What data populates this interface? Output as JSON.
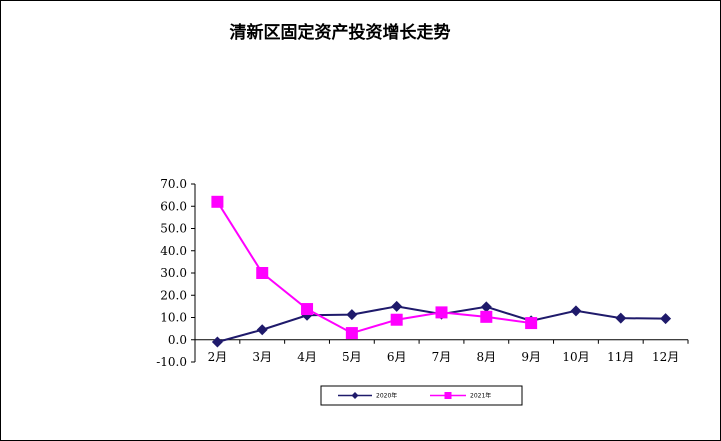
{
  "chart_data": {
    "type": "line",
    "title": "清新区固定资产投资增长走势",
    "xlabel": "",
    "ylabel": "",
    "categories": [
      "2月",
      "3月",
      "4月",
      "5月",
      "6月",
      "7月",
      "8月",
      "9月",
      "10月",
      "11月",
      "12月"
    ],
    "ylim": [
      -10,
      70
    ],
    "yticks": [
      -10,
      0,
      10,
      20,
      30,
      40,
      50,
      60,
      70
    ],
    "ytick_labels": [
      "-10.0",
      "0.0",
      "10.0",
      "20.0",
      "30.0",
      "40.0",
      "50.0",
      "60.0",
      "70.0"
    ],
    "grid": false,
    "legend_position": "bottom",
    "series": [
      {
        "name": "2020年",
        "color": "#1f1a6b",
        "marker": "diamond",
        "values": [
          -1.0,
          4.5,
          11.0,
          11.3,
          15.0,
          11.5,
          14.8,
          8.5,
          13.0,
          9.7,
          9.5
        ]
      },
      {
        "name": "2021年",
        "color": "#ff00ff",
        "marker": "square",
        "values": [
          62.0,
          30.0,
          13.8,
          3.0,
          9.0,
          12.3,
          10.3,
          7.5,
          null,
          null,
          null
        ]
      }
    ]
  }
}
